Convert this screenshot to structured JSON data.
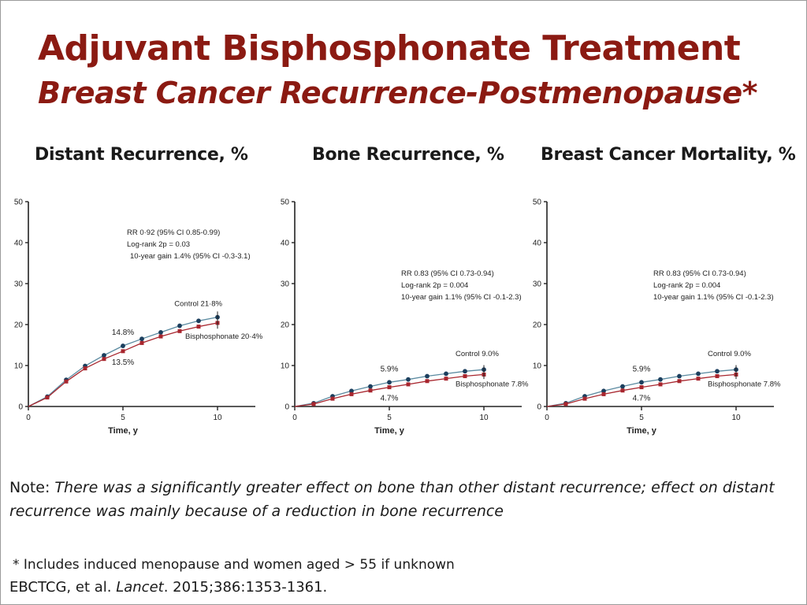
{
  "slide": {
    "title": "Adjuvant Bisphosphonate Treatment",
    "subtitle": "Breast Cancer Recurrence-Postmenopause*"
  },
  "note": {
    "label": "Note: ",
    "text": "There was a significantly greater effect on bone than other distant recurrence; effect on distant recurrence was mainly because of a reduction in bone recurrence"
  },
  "footnote": "* Includes induced menopause and women aged > 55 if unknown",
  "citation": {
    "authors": "EBCTCG, et al. ",
    "journal": "Lancet",
    "details": ". 2015;386:1353-1361."
  },
  "colors": {
    "title": "#8b1a12",
    "control": "#1c3f5e",
    "bisphosphonate": "#a8262e",
    "control_line": "#5a8aa0"
  },
  "chart_data": [
    {
      "type": "line",
      "title": "Distant Recurrence, %",
      "xlabel": "Time, y",
      "ylabel": "",
      "xlim": [
        0,
        12
      ],
      "ylim": [
        0,
        50
      ],
      "xticks": [
        0,
        5,
        10
      ],
      "yticks": [
        0,
        10,
        20,
        30,
        40,
        50
      ],
      "x": [
        0,
        1,
        2,
        3,
        4,
        5,
        6,
        7,
        8,
        9,
        10
      ],
      "series": [
        {
          "key": "control",
          "values": [
            0,
            2.4,
            6.5,
            9.9,
            12.5,
            14.8,
            16.5,
            18.1,
            19.7,
            20.9,
            21.8
          ]
        },
        {
          "key": "bisphosphonate",
          "values": [
            0,
            2.2,
            6.1,
            9.3,
            11.6,
            13.5,
            15.5,
            17.1,
            18.4,
            19.5,
            20.4
          ]
        }
      ],
      "stats": [
        "RR 0·92 (95% CI 0.85-0.99)",
        "Log-rank 2p = 0.03",
        "10-year gain 1.4% (95% CI -0.3-3.1)"
      ],
      "labels": {
        "control_end": "Control 21·8%",
        "bisphosphonate_end": "Bisphosphonate 20·4%",
        "control_5y": "14.8%",
        "bisphosphonate_5y": "13.5%"
      }
    },
    {
      "type": "line",
      "title": "Bone Recurrence, %",
      "xlabel": "Time, y",
      "ylabel": "",
      "xlim": [
        0,
        12
      ],
      "ylim": [
        0,
        50
      ],
      "xticks": [
        0,
        5,
        10
      ],
      "yticks": [
        0,
        10,
        20,
        30,
        40,
        50
      ],
      "x": [
        0,
        1,
        2,
        3,
        4,
        5,
        6,
        7,
        8,
        9,
        10
      ],
      "series": [
        {
          "key": "control",
          "values": [
            0,
            0.8,
            2.5,
            3.8,
            4.9,
            5.9,
            6.6,
            7.4,
            8.0,
            8.6,
            9.0
          ]
        },
        {
          "key": "bisphosphonate",
          "values": [
            0,
            0.6,
            1.9,
            3.0,
            3.9,
            4.7,
            5.4,
            6.2,
            6.8,
            7.4,
            7.8
          ]
        }
      ],
      "stats": [
        "RR 0.83 (95% CI 0.73-0.94)",
        "Log-rank 2p = 0.004",
        "10-year gain 1.1% (95% CI -0.1-2.3)"
      ],
      "labels": {
        "control_end": "Control 9.0%",
        "bisphosphonate_end": "Bisphosphonate 7.8%",
        "control_5y": "5.9%",
        "bisphosphonate_5y": "4.7%"
      }
    },
    {
      "type": "line",
      "title": "Breast Cancer Mortality, %",
      "xlabel": "Time, y",
      "ylabel": "",
      "xlim": [
        0,
        12
      ],
      "ylim": [
        0,
        50
      ],
      "xticks": [
        0,
        5,
        10
      ],
      "yticks": [
        0,
        10,
        20,
        30,
        40,
        50
      ],
      "x": [
        0,
        1,
        2,
        3,
        4,
        5,
        6,
        7,
        8,
        9,
        10
      ],
      "series": [
        {
          "key": "control",
          "values": [
            0,
            0.8,
            2.5,
            3.8,
            4.9,
            5.9,
            6.6,
            7.4,
            8.0,
            8.6,
            9.0
          ]
        },
        {
          "key": "bisphosphonate",
          "values": [
            0,
            0.6,
            1.9,
            3.0,
            3.9,
            4.7,
            5.4,
            6.2,
            6.8,
            7.4,
            7.8
          ]
        }
      ],
      "stats": [
        "RR 0.83 (95% CI 0.73-0.94)",
        "Log-rank 2p = 0.004",
        "10-year gain 1.1% (95% CI -0.1-2.3)"
      ],
      "labels": {
        "control_end": "Control 9.0%",
        "bisphosphonate_end": "Bisphosphonate 7.8%",
        "control_5y": "5.9%",
        "bisphosphonate_5y": "4.7%"
      }
    }
  ]
}
